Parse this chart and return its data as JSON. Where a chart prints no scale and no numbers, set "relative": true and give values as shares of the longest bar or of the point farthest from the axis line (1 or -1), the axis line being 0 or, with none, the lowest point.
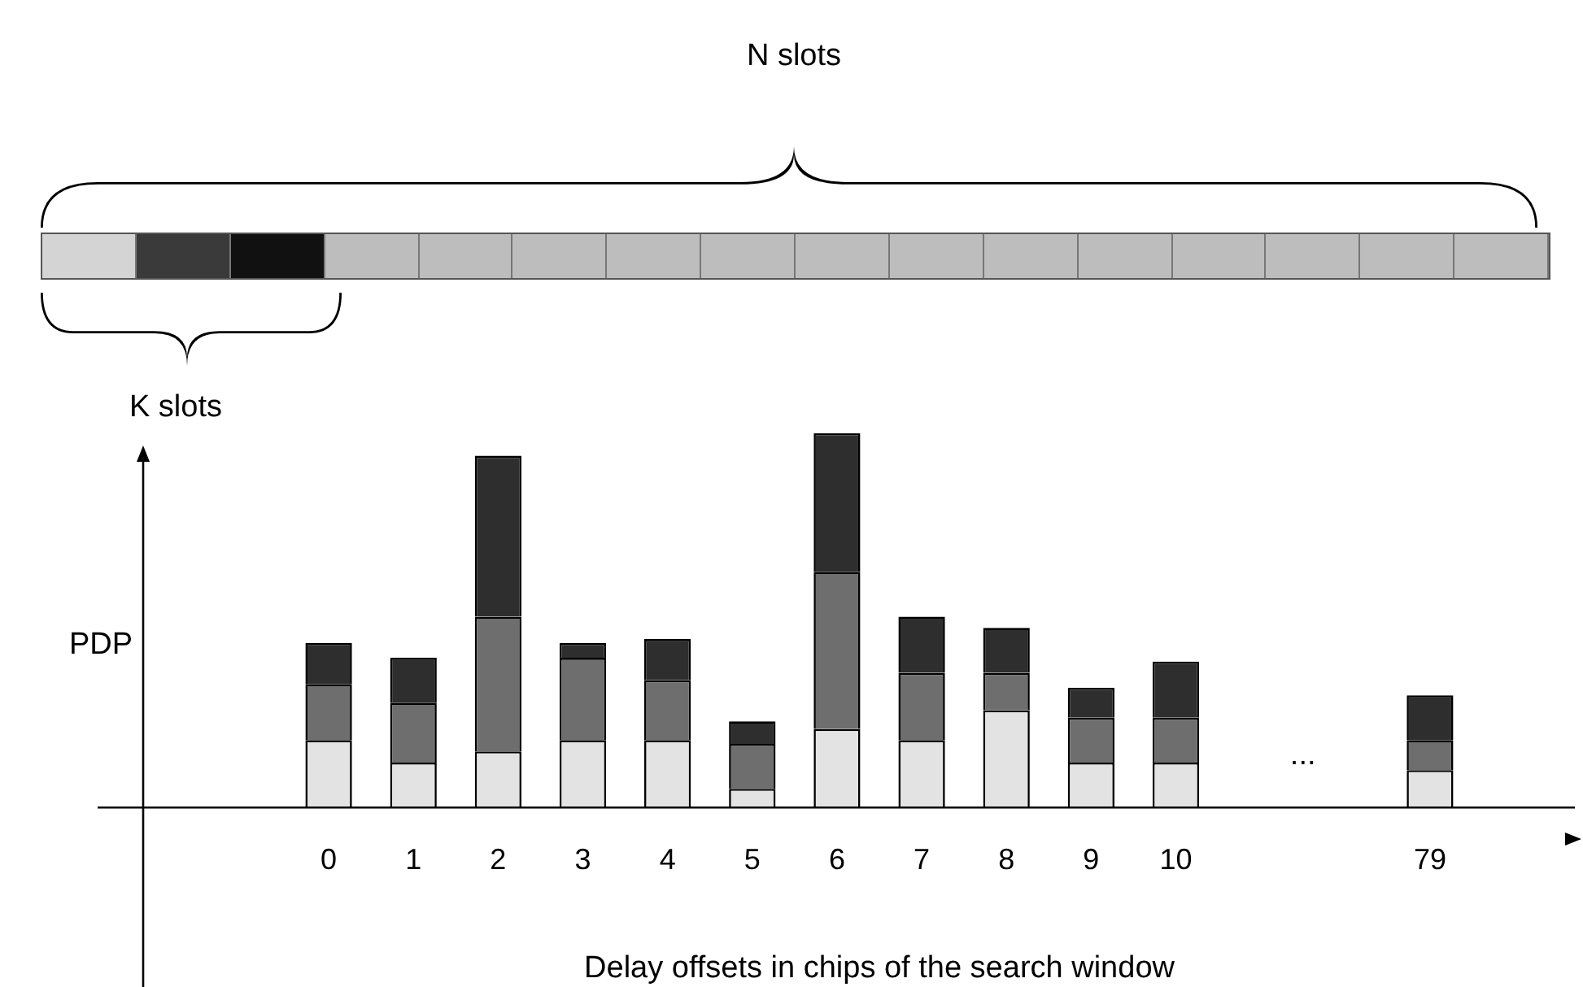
{
  "chart_data": {
    "type": "bar",
    "stacked": true,
    "relative": true,
    "legend": false,
    "grid": false,
    "ylabel": "PDP",
    "xlabel": "Delay offsets in chips of the search window",
    "categories": [
      "0",
      "1",
      "2",
      "3",
      "4",
      "5",
      "6",
      "7",
      "8",
      "9",
      "10",
      null,
      null,
      "79"
    ],
    "series": [
      {
        "color": "#e3e3e3",
        "values": [
          0.18,
          0.12,
          0.15,
          0.18,
          0.18,
          0.05,
          0.21,
          0.18,
          0.26,
          0.12,
          0.12,
          null,
          null,
          0.1
        ]
      },
      {
        "color": "#6e6e6e",
        "values": [
          0.15,
          0.16,
          0.36,
          0.22,
          0.16,
          0.12,
          0.42,
          0.18,
          0.1,
          0.12,
          0.12,
          null,
          null,
          0.08
        ]
      },
      {
        "color": "#2e2e2e",
        "values": [
          0.11,
          0.12,
          0.43,
          0.04,
          0.11,
          0.06,
          0.37,
          0.15,
          0.12,
          0.08,
          0.15,
          null,
          null,
          0.12
        ]
      }
    ],
    "annotations": [
      "N slots",
      "K slots",
      "..."
    ]
  }
}
